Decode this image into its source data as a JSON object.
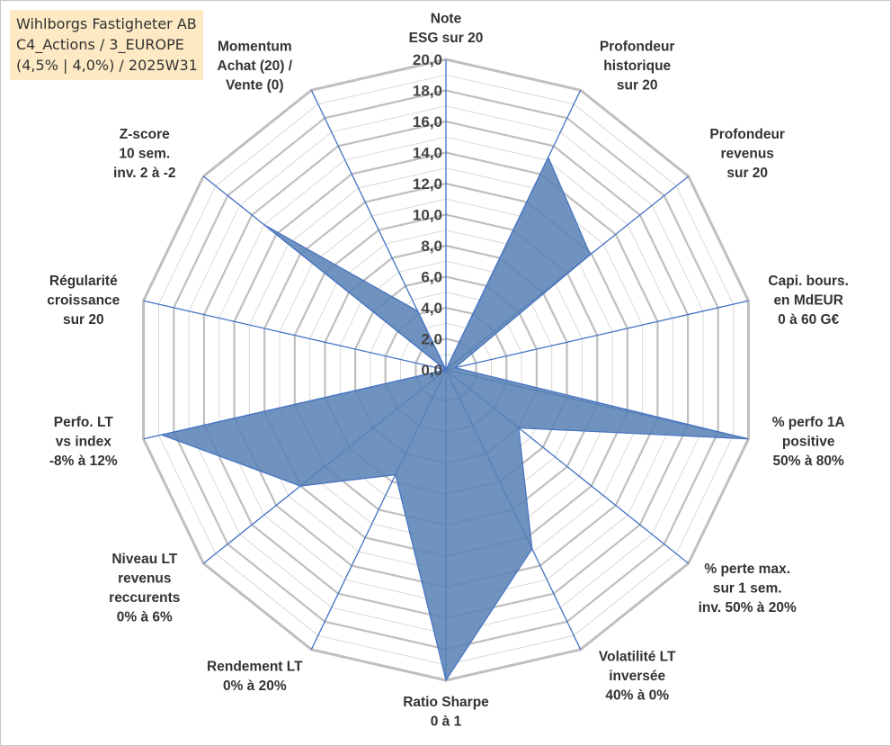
{
  "title_box": {
    "line1": "Wihlborgs Fastigheter AB",
    "line2": "C4_Actions / 3_EUROPE",
    "line3": "(4,5% | 4,0%) / 2025W31"
  },
  "colors": {
    "fill": "#5b83b5",
    "axis": "#4472c4",
    "grid_major": "#bfbfbf",
    "grid_minor": "#d9d9d9",
    "title_bg": "#fde9c4"
  },
  "chart_data": {
    "type": "radar",
    "rlim": [
      0,
      20
    ],
    "major_ticks": [
      "0,0",
      "2,0",
      "4,0",
      "6,0",
      "8,0",
      "10,0",
      "12,0",
      "14,0",
      "16,0",
      "18,0",
      "20,0"
    ],
    "axes": [
      [
        "Note",
        "ESG sur 20"
      ],
      [
        "Profondeur",
        "historique",
        "sur 20"
      ],
      [
        "Profondeur",
        "revenus",
        "sur 20"
      ],
      [
        "Capi. bours.",
        "en MdEUR",
        "0 à 60 G€"
      ],
      [
        "% perfo 1A",
        "positive",
        "50% à 80%"
      ],
      [
        "% perte max.",
        "sur 1 sem.",
        "inv. 50% à 20%"
      ],
      [
        "Volatilité LT",
        "inversée",
        "40% à 0%"
      ],
      [
        "Ratio Sharpe",
        "0 à 1"
      ],
      [
        "Rendement LT",
        "0% à 20%"
      ],
      [
        "Niveau LT",
        "revenus",
        "reccurents",
        "0% à 6%"
      ],
      [
        "Perfo. LT",
        "vs index",
        "-8% à 12%"
      ],
      [
        "Régularité",
        "croissance",
        "sur 20"
      ],
      [
        "Z-score",
        "10 sem.",
        "inv. 2 à -2"
      ],
      [
        "Momentum",
        "Achat (20) /",
        "Vente (0)"
      ]
    ],
    "values": [
      0.0,
      15.2,
      11.9,
      0.6,
      20.0,
      6.0,
      12.8,
      20.0,
      7.5,
      12.0,
      18.8,
      0.0,
      15.0,
      4.2
    ],
    "grid": true
  }
}
